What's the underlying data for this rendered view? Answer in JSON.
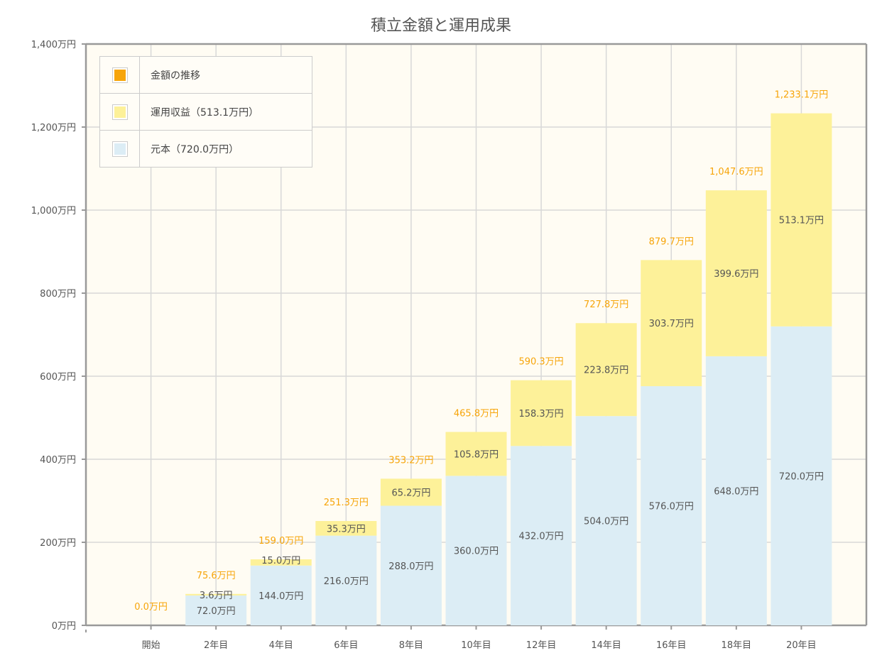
{
  "chart_data": {
    "type": "bar",
    "stacked": true,
    "title": "積立金額と運用成果",
    "categories": [
      "開始",
      "2年目",
      "4年目",
      "6年目",
      "8年目",
      "10年目",
      "12年目",
      "14年目",
      "16年目",
      "18年目",
      "20年目"
    ],
    "series": [
      {
        "name": "元本（720.0万円）",
        "color": "#dcedf5",
        "values": [
          0,
          72.0,
          144.0,
          216.0,
          288.0,
          360.0,
          432.0,
          504.0,
          576.0,
          648.0,
          720.0
        ],
        "labels": [
          "",
          "72.0万円",
          "144.0万円",
          "216.0万円",
          "288.0万円",
          "360.0万円",
          "432.0万円",
          "504.0万円",
          "576.0万円",
          "648.0万円",
          "720.0万円"
        ]
      },
      {
        "name": "運用収益（513.1万円）",
        "color": "#fdf199",
        "values": [
          0,
          3.6,
          15.0,
          35.3,
          65.2,
          105.8,
          158.3,
          223.8,
          303.7,
          399.6,
          513.1
        ],
        "labels": [
          "",
          "3.6万円",
          "15.0万円",
          "35.3万円",
          "65.2万円",
          "105.8万円",
          "158.3万円",
          "223.8万円",
          "303.7万円",
          "399.6万円",
          "513.1万円"
        ]
      }
    ],
    "totals": {
      "name": "金額の推移",
      "color": "#f7a50a",
      "values": [
        0.0,
        75.6,
        159.0,
        251.3,
        353.2,
        465.8,
        590.3,
        727.8,
        879.7,
        1047.6,
        1233.1
      ],
      "labels": [
        "0.0万円",
        "75.6万円",
        "159.0万円",
        "251.3万円",
        "353.2万円",
        "465.8万円",
        "590.3万円",
        "727.8万円",
        "879.7万円",
        "1,047.6万円",
        "1,233.1万円"
      ]
    },
    "ylim": [
      0,
      1400
    ],
    "yticks": [
      0,
      200,
      400,
      600,
      800,
      1000,
      1200,
      1400
    ],
    "ytick_labels": [
      "0万円",
      "200万円",
      "400万円",
      "600万円",
      "800万円",
      "1,000万円",
      "1,200万円",
      "1,400万円"
    ],
    "grid": true,
    "legend_position": "top-left",
    "legend": [
      "金額の推移",
      "運用収益（513.1万円）",
      "元本（720.0万円）"
    ]
  }
}
